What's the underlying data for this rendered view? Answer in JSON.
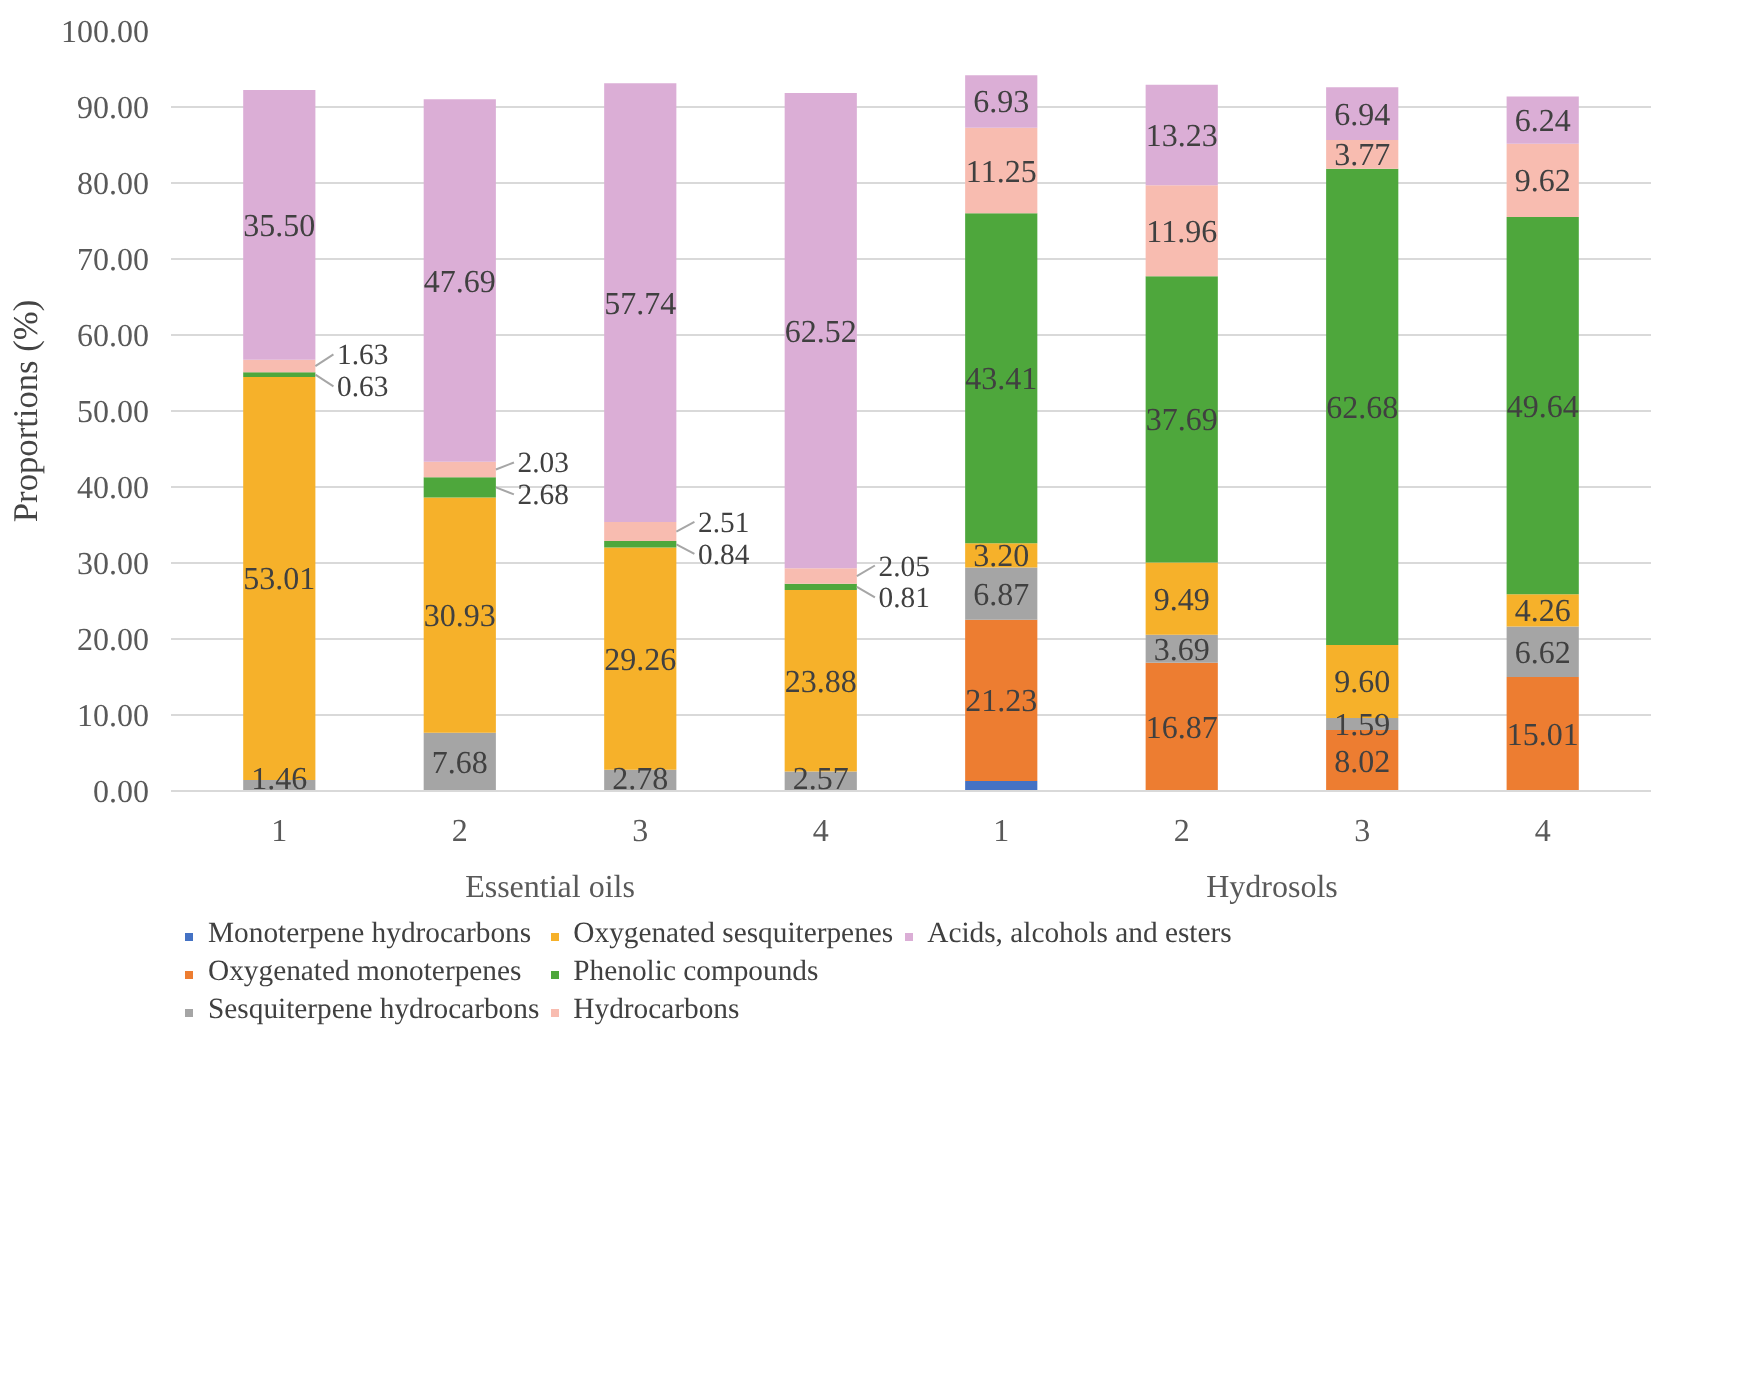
{
  "chart_data": {
    "type": "bar",
    "stacked": true,
    "ylabel": "Proportions (%)",
    "categories": [
      "1",
      "2",
      "3",
      "4",
      "1",
      "2",
      "3",
      "4"
    ],
    "annotations": [
      "Essential oils",
      "Hydrosols"
    ],
    "ylim": [
      0,
      100
    ],
    "yticks": [
      {
        "value": 0,
        "label": "0.00"
      },
      {
        "value": 10,
        "label": "10.00"
      },
      {
        "value": 20,
        "label": "20.00"
      },
      {
        "value": 30,
        "label": "30.00"
      },
      {
        "value": 40,
        "label": "40.00"
      },
      {
        "value": 50,
        "label": "50.00"
      },
      {
        "value": 60,
        "label": "60.00"
      },
      {
        "value": 70,
        "label": "70.00"
      },
      {
        "value": 80,
        "label": "80.00"
      },
      {
        "value": 90,
        "label": "90.00"
      },
      {
        "value": 100,
        "label": "100.00"
      }
    ],
    "grid": "y",
    "legend": "bottom",
    "series": [
      {
        "name": "Monoterpene hydrocarbons",
        "color": "#4472c4",
        "values": [
          null,
          null,
          null,
          null,
          1.3,
          null,
          null,
          null
        ],
        "value_labels": [
          null,
          null,
          null,
          null,
          null,
          null,
          null,
          null
        ]
      },
      {
        "name": "Oxygenated monoterpenes",
        "color": "#ed7d31",
        "values": [
          null,
          null,
          null,
          null,
          21.23,
          16.87,
          8.02,
          15.01
        ],
        "value_labels": [
          null,
          null,
          null,
          null,
          "21.23",
          "16.87",
          "8.02",
          "15.01"
        ]
      },
      {
        "name": "Sesquiterpene hydrocarbons",
        "color": "#a5a5a5",
        "values": [
          1.46,
          7.68,
          2.78,
          2.57,
          6.87,
          3.69,
          1.59,
          6.62
        ],
        "value_labels": [
          "1.46",
          "7.68",
          "2.78",
          "2.57",
          "6.87",
          "3.69",
          "1.59",
          "6.62"
        ]
      },
      {
        "name": "Oxygenated sesquiterpenes",
        "color": "#f6b12a",
        "values": [
          53.01,
          30.93,
          29.26,
          23.88,
          3.2,
          9.49,
          9.6,
          4.26
        ],
        "value_labels": [
          "53.01",
          "30.93",
          "29.26",
          "23.88",
          "3.20",
          "9.49",
          "9.60",
          "4.26"
        ]
      },
      {
        "name": "Phenolic compounds",
        "color": "#4ea73c",
        "values": [
          0.63,
          2.68,
          0.84,
          0.81,
          43.41,
          37.69,
          62.68,
          49.64
        ],
        "value_labels": [
          "0.63",
          "2.68",
          "0.84",
          "0.81",
          "43.41",
          "37.69",
          "62.68",
          "49.64"
        ]
      },
      {
        "name": "Hydrocarbons",
        "color": "#f8bcb0",
        "values": [
          1.63,
          2.03,
          2.51,
          2.05,
          11.25,
          11.96,
          3.77,
          9.62
        ],
        "value_labels": [
          "1.63",
          "2.03",
          "2.51",
          "2.05",
          "11.25",
          "11.96",
          "3.77",
          "9.62"
        ]
      },
      {
        "name": "Acids, alcohols and esters",
        "color": "#dbaed6",
        "values": [
          35.5,
          47.69,
          57.74,
          62.52,
          6.93,
          13.23,
          6.94,
          6.24
        ],
        "value_labels": [
          "35.50",
          "47.69",
          "57.74",
          "62.52",
          "6.93",
          "13.23",
          "6.94",
          "6.24"
        ]
      }
    ]
  }
}
